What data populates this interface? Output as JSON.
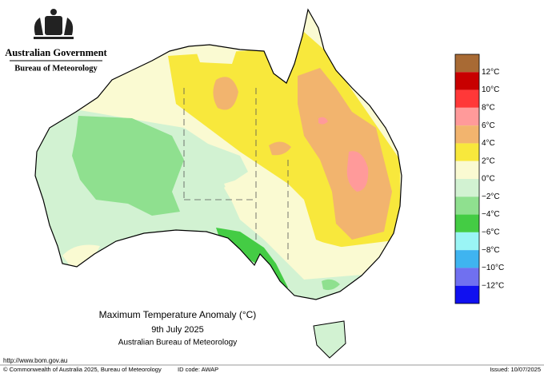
{
  "header": {
    "government": "Australian Government",
    "agency": "Bureau of Meteorology"
  },
  "map": {
    "title": "Maximum Temperature Anomaly (°C)",
    "date": "9th July 2025",
    "source": "Australian Bureau of Meteorology"
  },
  "legend": {
    "colors": [
      "#a86a34",
      "#c80000",
      "#ff3838",
      "#ff9a9a",
      "#f2b46e",
      "#f8e83c",
      "#fafad2",
      "#d2f2d2",
      "#8fe08f",
      "#44cc44",
      "#9af5f5",
      "#3fb4f0",
      "#7070f0",
      "#1010f0"
    ],
    "labels": [
      "12°C",
      "10°C",
      "8°C",
      "6°C",
      "4°C",
      "2°C",
      "0°C",
      "−2°C",
      "−4°C",
      "−6°C",
      "−8°C",
      "−10°C",
      "−12°C"
    ]
  },
  "footer": {
    "url": "http://www.bom.gov.au",
    "copyright": "© Commonwealth of Australia 2025, Bureau of Meteorology",
    "id_code": "ID code: AWAP",
    "issued": "Issued: 10/07/2025"
  }
}
